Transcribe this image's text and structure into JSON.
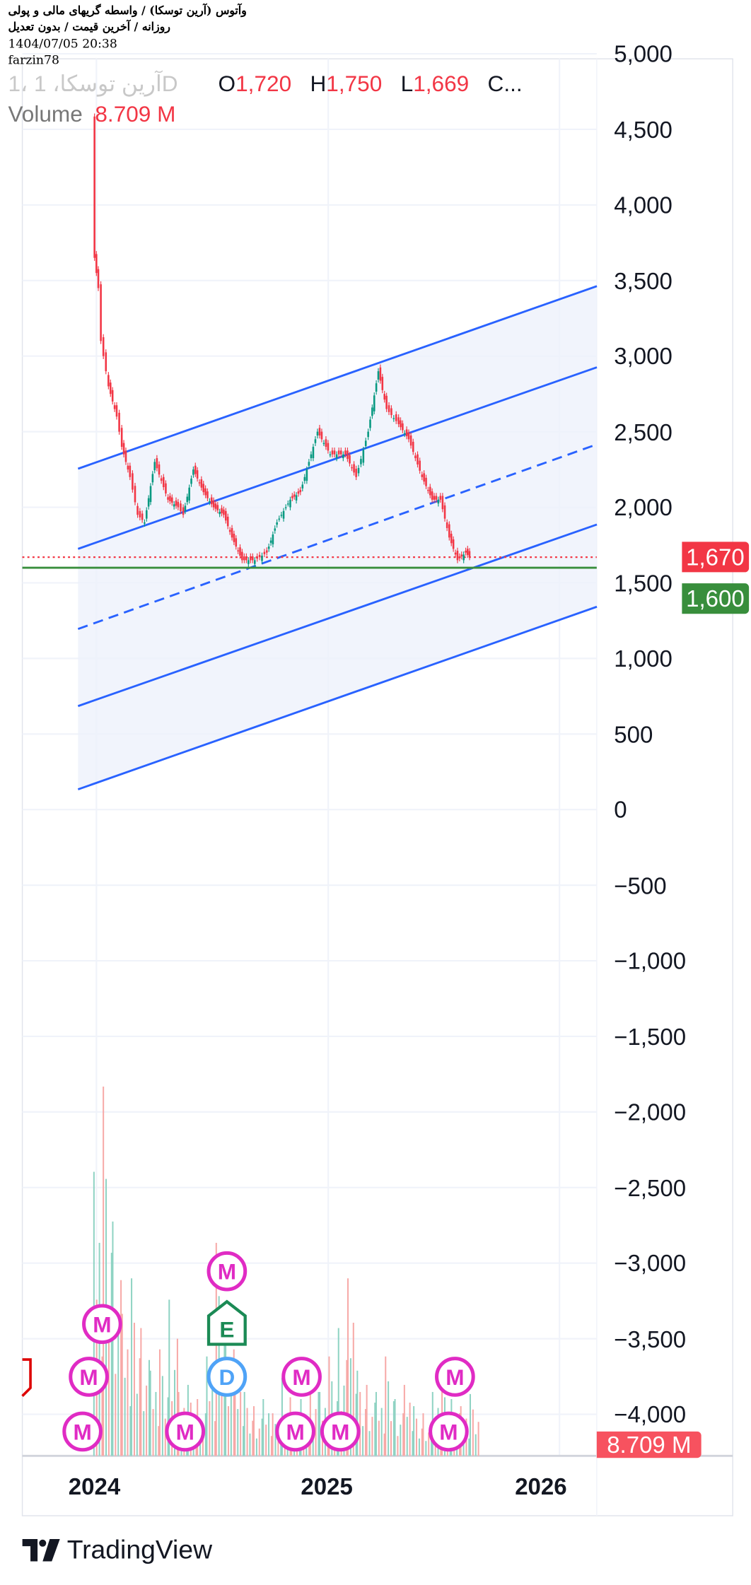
{
  "header": {
    "title": "وآتوس (آرین توسکا) / واسطه گریهای مالی و پولی",
    "subtitle": "روزانه / آخرین قیمت / بدون تعدیل",
    "datetime": "1404/07/05 20:38",
    "author": "farzin78"
  },
  "legend": {
    "symbol_faded": "1، آرین توسکا، 1D",
    "o_label": "O",
    "o_value": "1,720",
    "h_label": "H",
    "h_value": "1,750",
    "l_label": "L",
    "l_value": "1,669",
    "c_label": "C...",
    "volume_label": "Volume",
    "volume_value": "8.709 M"
  },
  "badges": {
    "last_price": "1,670",
    "support": "1,600",
    "volume": "8.709 M"
  },
  "colors": {
    "up": "#089981",
    "down": "#f23645",
    "channel": "#2962ff",
    "channel_fill": "#eef1fb",
    "support": "#388e3c",
    "marker_m": "#e02bc4",
    "marker_d": "#4fa3f7",
    "marker_e": "#1b8a55",
    "grid": "#f0f3fa"
  },
  "branding": {
    "logo_text": "TradingView"
  },
  "chart_data": {
    "type": "candlestick",
    "title": "",
    "y_axis": {
      "ticks": [
        "5,000",
        "4,500",
        "4,000",
        "3,500",
        "3,000",
        "2,500",
        "2,000",
        "1,500",
        "1,000",
        "500",
        "0",
        "−500",
        "−1,000",
        "−1,500",
        "−2,000",
        "−2,500",
        "−3,000",
        "−3,500",
        "−4,000"
      ],
      "ylim": [
        -4200,
        5200
      ],
      "grid": true
    },
    "x_axis": {
      "ticks": [
        "2024",
        "2025",
        "2026"
      ]
    },
    "price_series": [
      [
        "2023-12-27",
        4560
      ],
      [
        "2023-12-29",
        3650
      ],
      [
        "2024-01-04",
        3450
      ],
      [
        "2024-01-08",
        3100
      ],
      [
        "2024-01-20",
        2800
      ],
      [
        "2024-02-02",
        2600
      ],
      [
        "2024-02-10",
        2400
      ],
      [
        "2024-02-23",
        2200
      ],
      [
        "2024-03-06",
        1950
      ],
      [
        "2024-03-17",
        1900
      ],
      [
        "2024-04-02",
        2300
      ],
      [
        "2024-04-23",
        2050
      ],
      [
        "2024-05-09",
        2000
      ],
      [
        "2024-05-17",
        1950
      ],
      [
        "2024-06-02",
        2250
      ],
      [
        "2024-06-18",
        2100
      ],
      [
        "2024-07-04",
        2000
      ],
      [
        "2024-07-20",
        1950
      ],
      [
        "2024-08-02",
        1800
      ],
      [
        "2024-08-18",
        1650
      ],
      [
        "2024-09-07",
        1650
      ],
      [
        "2024-09-26",
        1700
      ],
      [
        "2024-10-12",
        1900
      ],
      [
        "2024-11-02",
        2050
      ],
      [
        "2024-11-18",
        2100
      ],
      [
        "2024-12-15",
        2500
      ],
      [
        "2025-01-04",
        2350
      ],
      [
        "2025-01-28",
        2350
      ],
      [
        "2025-02-14",
        2200
      ],
      [
        "2025-03-05",
        2500
      ],
      [
        "2025-03-21",
        2900
      ],
      [
        "2025-04-03",
        2650
      ],
      [
        "2025-04-22",
        2550
      ],
      [
        "2025-05-08",
        2450
      ],
      [
        "2025-05-29",
        2200
      ],
      [
        "2025-06-14",
        2050
      ],
      [
        "2025-06-27",
        2050
      ],
      [
        "2025-07-11",
        1800
      ],
      [
        "2025-07-24",
        1650
      ],
      [
        "2025-08-06",
        1700
      ],
      [
        "2025-08-12",
        1670
      ]
    ],
    "last_ohlc": {
      "open": 1720,
      "high": 1750,
      "low": 1669
    },
    "horizontal_lines": [
      {
        "price": 1670,
        "style": "dotted",
        "color": "#f23645"
      },
      {
        "price": 1600,
        "style": "solid",
        "color": "#388e3c"
      }
    ],
    "channel": {
      "start": "2023-12-03",
      "end": "2026-03-01",
      "lines": [
        {
          "from": 2255,
          "to": 3463,
          "style": "solid"
        },
        {
          "from": 1725,
          "to": 2926,
          "style": "solid"
        },
        {
          "from": 1195,
          "to": 2416,
          "style": "dashed"
        },
        {
          "from": 685,
          "to": 1886,
          "style": "solid"
        },
        {
          "from": 134,
          "to": 1342,
          "style": "solid"
        }
      ]
    },
    "volume_millions": [
      40,
      52,
      33,
      20,
      25,
      18,
      12,
      15,
      22,
      9,
      10,
      8,
      14,
      30,
      20,
      12,
      9,
      7,
      8,
      6,
      11,
      6,
      8,
      12,
      9,
      14,
      18,
      25,
      12,
      10,
      9,
      14,
      8,
      10,
      7,
      6,
      9,
      11,
      8,
      7,
      8.709
    ],
    "volume_last": "8.709 M",
    "events": [
      {
        "type": "M",
        "date": "2023-12-10"
      },
      {
        "type": "M",
        "date": "2023-12-20"
      },
      {
        "type": "M",
        "date": "2024-01-10"
      },
      {
        "type": "M",
        "date": "2024-05-20"
      },
      {
        "type": "D",
        "date": "2024-07-25"
      },
      {
        "type": "E",
        "date": "2024-07-25"
      },
      {
        "type": "M",
        "date": "2024-07-25"
      },
      {
        "type": "M",
        "date": "2024-11-10"
      },
      {
        "type": "M",
        "date": "2024-11-20"
      },
      {
        "type": "M",
        "date": "2025-01-20"
      },
      {
        "type": "M",
        "date": "2025-07-10"
      },
      {
        "type": "M",
        "date": "2025-07-20"
      }
    ]
  }
}
